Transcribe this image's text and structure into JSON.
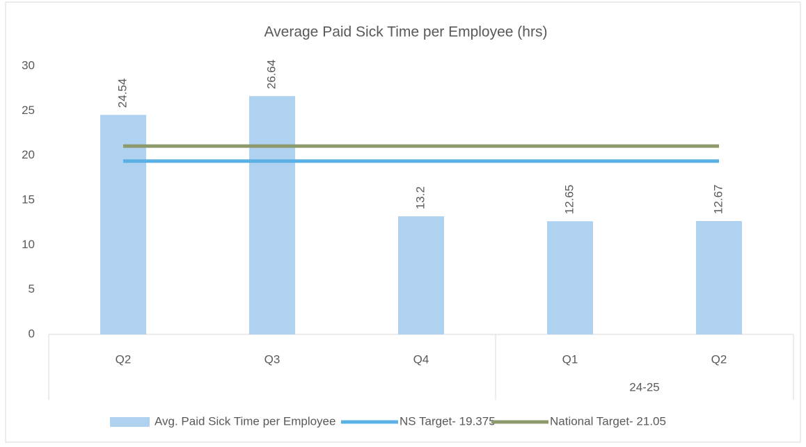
{
  "chart_data": {
    "type": "bar",
    "title": "Average Paid Sick Time per Employee (hrs)",
    "categories": [
      "Q2",
      "Q3",
      "Q4",
      "Q1",
      "Q2"
    ],
    "groups": [
      {
        "name": null,
        "size": 3
      },
      {
        "name": "24-25",
        "size": 2
      }
    ],
    "series": [
      {
        "name": "Avg. Paid Sick Time per Employee",
        "type": "bar",
        "color": "#afd2f0",
        "values": [
          24.54,
          26.64,
          13.2,
          12.65,
          12.67
        ]
      },
      {
        "name": "NS Target- 19.375",
        "type": "line",
        "color": "#5bb0e4",
        "values": [
          19.375,
          19.375,
          19.375,
          19.375,
          19.375
        ]
      },
      {
        "name": "National Target- 21.05",
        "type": "line",
        "color": "#8e9a6c",
        "values": [
          21.05,
          21.05,
          21.05,
          21.05,
          21.05
        ]
      }
    ],
    "ylim": [
      0,
      30
    ],
    "yticks": [
      0,
      5,
      10,
      15,
      20,
      25,
      30
    ],
    "grid": false,
    "data_labels": true,
    "legend": "bottom"
  }
}
